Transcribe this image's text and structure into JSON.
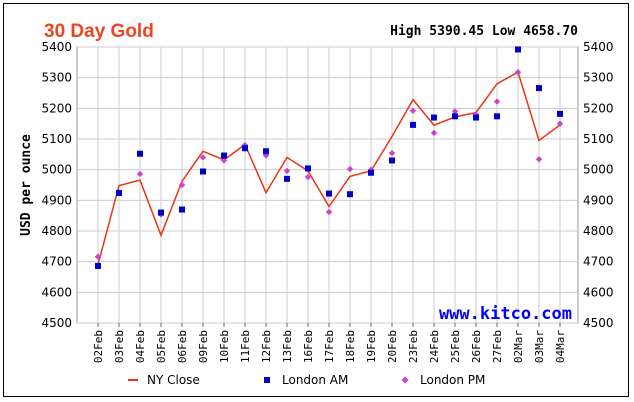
{
  "header": {
    "title": "30 Day Gold",
    "hilo": "High 5390.45 Low 4658.70"
  },
  "watermark": "www.kitco.com",
  "colors": {
    "ny_close": "#ee3311",
    "london_am": "#0000cc",
    "london_pm": "#cc44cc",
    "title": "#ee4422",
    "watermark": "#0000ff"
  },
  "chart_data": {
    "type": "line",
    "ylabel": "USD per ounce",
    "ylim": [
      4500,
      5400
    ],
    "yticks": [
      4500,
      4600,
      4700,
      4800,
      4900,
      5000,
      5100,
      5200,
      5300,
      5400
    ],
    "grid": true,
    "legend_position": "bottom",
    "categories": [
      "02Feb",
      "03Feb",
      "04Feb",
      "05Feb",
      "06Feb",
      "09Feb",
      "10Feb",
      "11Feb",
      "12Feb",
      "13Feb",
      "16Feb",
      "17Feb",
      "18Feb",
      "19Feb",
      "20Feb",
      "23Feb",
      "24Feb",
      "25Feb",
      "26Feb",
      "27Feb",
      "02Mar",
      "03Mar",
      "04Mar"
    ],
    "series": [
      {
        "name": "NY Close",
        "style": "line",
        "values": [
          4690,
          4948,
          4966,
          4786,
          4962,
          5060,
          5032,
          5082,
          4925,
          5040,
          4996,
          4880,
          4978,
          4996,
          5108,
          5228,
          5145,
          5172,
          5186,
          5280,
          5318,
          5095,
          5146
        ]
      },
      {
        "name": "London AM",
        "style": "square",
        "values": [
          4686,
          4924,
          5052,
          4860,
          4870,
          4994,
          5046,
          5070,
          5060,
          4970,
          5004,
          4922,
          4920,
          4990,
          5030,
          5146,
          5170,
          5174,
          5170,
          5174,
          5392,
          5266,
          5182
        ]
      },
      {
        "name": "London PM",
        "style": "diamond",
        "values": [
          4716,
          4926,
          4986,
          4854,
          4950,
          5040,
          5030,
          5080,
          5046,
          4996,
          4976,
          4862,
          5002,
          5000,
          5054,
          5192,
          5120,
          5190,
          5180,
          5222,
          5318,
          5034,
          5150
        ]
      }
    ]
  }
}
